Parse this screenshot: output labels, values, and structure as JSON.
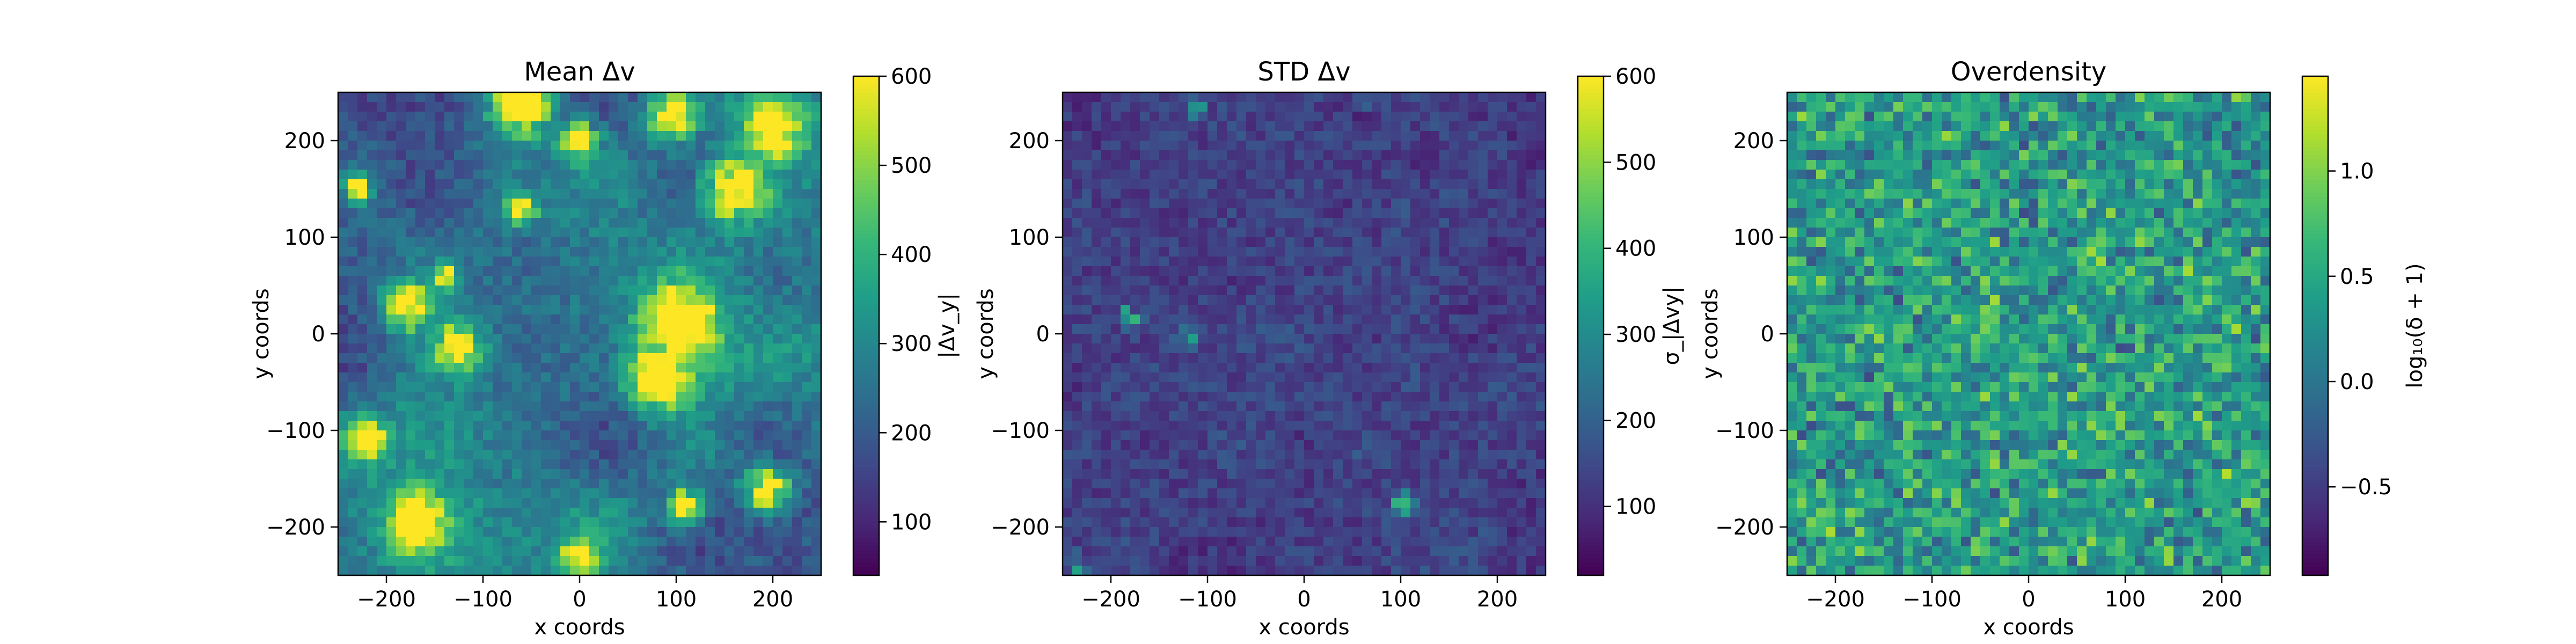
{
  "chart_data": [
    {
      "type": "heatmap",
      "title": "Mean Δv",
      "xlabel": "x coords",
      "ylabel": "y coords",
      "xlim": [
        -250,
        250
      ],
      "ylim": [
        -250,
        250
      ],
      "xticks": [
        -200,
        -100,
        0,
        100,
        200
      ],
      "yticks": [
        -200,
        -100,
        0,
        100,
        200
      ],
      "grid_size": 50,
      "colormap": "viridis",
      "colorbar": {
        "label": "|Δv_y|",
        "range": [
          40,
          600
        ],
        "ticks": [
          100,
          200,
          300,
          400,
          500,
          600
        ]
      },
      "bright_spots": [
        {
          "x": 100,
          "y": 10,
          "r": 38
        },
        {
          "x": 80,
          "y": -45,
          "r": 30
        },
        {
          "x": 160,
          "y": 150,
          "r": 30
        },
        {
          "x": -125,
          "y": -15,
          "r": 22
        },
        {
          "x": -180,
          "y": 30,
          "r": 22
        },
        {
          "x": -170,
          "y": -195,
          "r": 28
        },
        {
          "x": -60,
          "y": 240,
          "r": 30
        },
        {
          "x": 95,
          "y": 225,
          "r": 22
        },
        {
          "x": 200,
          "y": 210,
          "r": 28
        },
        {
          "x": 0,
          "y": 200,
          "r": 18
        },
        {
          "x": -60,
          "y": 130,
          "r": 14
        },
        {
          "x": 195,
          "y": -160,
          "r": 22
        },
        {
          "x": 110,
          "y": -180,
          "r": 18
        },
        {
          "x": -220,
          "y": -110,
          "r": 18
        },
        {
          "x": -230,
          "y": 150,
          "r": 14
        },
        {
          "x": 0,
          "y": -230,
          "r": 16
        },
        {
          "x": -140,
          "y": 60,
          "r": 12
        }
      ]
    },
    {
      "type": "heatmap",
      "title": "STD Δv",
      "xlabel": "x coords",
      "ylabel": "y coords",
      "xlim": [
        -250,
        250
      ],
      "ylim": [
        -250,
        250
      ],
      "xticks": [
        -200,
        -100,
        0,
        100,
        200
      ],
      "yticks": [
        -200,
        -100,
        0,
        100,
        200
      ],
      "grid_size": 50,
      "colormap": "viridis",
      "colorbar": {
        "label": "σ_|Δvy|",
        "range": [
          20,
          600
        ],
        "ticks": [
          100,
          200,
          300,
          400,
          500,
          600
        ]
      },
      "bright_spots": [
        {
          "x": -125,
          "y": -5,
          "r": 10
        },
        {
          "x": 65,
          "y": 245,
          "r": 8
        },
        {
          "x": -110,
          "y": 230,
          "r": 8
        },
        {
          "x": -180,
          "y": 20,
          "r": 12
        },
        {
          "x": 100,
          "y": -175,
          "r": 12
        },
        {
          "x": -230,
          "y": -240,
          "r": 10
        }
      ]
    },
    {
      "type": "heatmap",
      "title": "Overdensity",
      "xlabel": "x coords",
      "ylabel": "y coords",
      "xlim": [
        -250,
        250
      ],
      "ylim": [
        -250,
        250
      ],
      "xticks": [
        -200,
        -100,
        0,
        100,
        200
      ],
      "yticks": [
        -200,
        -100,
        0,
        100,
        200
      ],
      "grid_size": 50,
      "colormap": "viridis",
      "colorbar": {
        "label": "log₁₀(δ + 1)",
        "range": [
          -0.92,
          1.45
        ],
        "ticks": [
          -0.5,
          0.0,
          0.5,
          1.0
        ]
      }
    }
  ]
}
